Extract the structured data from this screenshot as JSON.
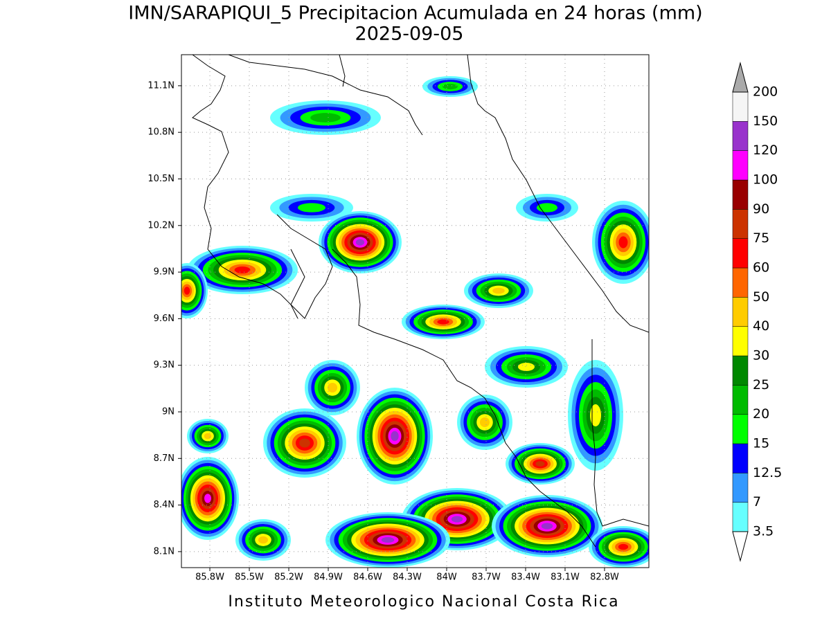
{
  "title": "IMN/SARAPIQUI_5 Precipitacion Acumulada en 24 horas (mm)",
  "subtitle": "2025-09-05",
  "map": {
    "lon_range": [
      -86.016,
      -82.463
    ],
    "lat_range": [
      7.997,
      11.3
    ],
    "lat_ticks": [
      {
        "value": 11.1,
        "label": "11.1N"
      },
      {
        "value": 10.8,
        "label": "10.8N"
      },
      {
        "value": 10.5,
        "label": "10.5N"
      },
      {
        "value": 10.2,
        "label": "10.2N"
      },
      {
        "value": 9.9,
        "label": "9.9N"
      },
      {
        "value": 9.6,
        "label": "9.6N"
      },
      {
        "value": 9.3,
        "label": "9.3N"
      },
      {
        "value": 9,
        "label": "9N"
      },
      {
        "value": 8.7,
        "label": "8.7N"
      },
      {
        "value": 8.4,
        "label": "8.4N"
      },
      {
        "value": 8.1,
        "label": "8.1N"
      }
    ],
    "lon_ticks": [
      {
        "value": -85.8,
        "label": "85.8W"
      },
      {
        "value": -85.5,
        "label": "85.5W"
      },
      {
        "value": -85.2,
        "label": "85.2W"
      },
      {
        "value": -84.9,
        "label": "84.9W"
      },
      {
        "value": -84.6,
        "label": "84.6W"
      },
      {
        "value": -84.3,
        "label": "84.3W"
      },
      {
        "value": -84,
        "label": "84W"
      },
      {
        "value": -83.7,
        "label": "83.7W"
      },
      {
        "value": -83.4,
        "label": "83.4W"
      },
      {
        "value": -83.1,
        "label": "83.1W"
      },
      {
        "value": -82.8,
        "label": "82.8W"
      }
    ]
  },
  "colorbar": {
    "levels": [
      "3.5",
      "7",
      "12.5",
      "15",
      "20",
      "25",
      "30",
      "40",
      "50",
      "60",
      "75",
      "90",
      "100",
      "120",
      "150",
      "200"
    ],
    "colors": [
      "#66ffff",
      "#3399ff",
      "#0000ff",
      "#00ff00",
      "#00bb00",
      "#008800",
      "#ffff00",
      "#ffcc00",
      "#ff6600",
      "#ff0000",
      "#cc3300",
      "#990000",
      "#ff00ff",
      "#9933cc",
      "#f5f5f5"
    ],
    "over_color": "#aaaaaa",
    "under_color": "#ffffff"
  },
  "footer": "Instituto Meteorologico Nacional Costa Rica"
}
